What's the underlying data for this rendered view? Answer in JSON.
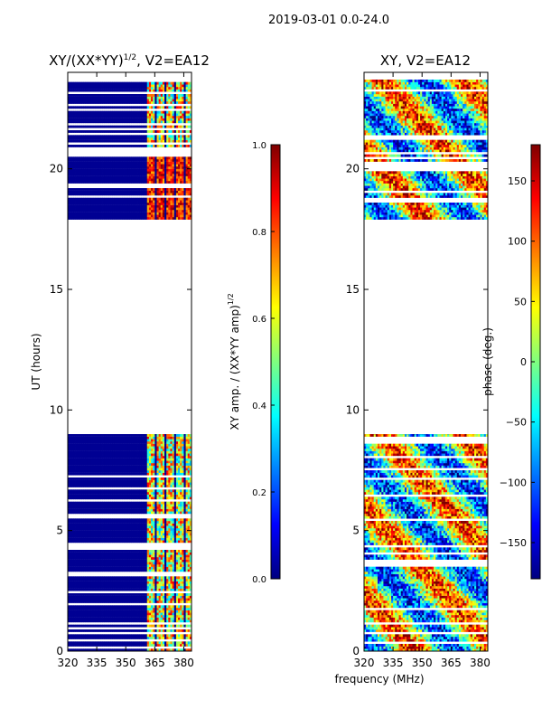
{
  "figure": {
    "suptitle": "2019-03-01 0.0-24.0",
    "shared_xlabel": "frequency (MHz)"
  },
  "colors": {
    "jet": [
      "#00007f",
      "#0000ff",
      "#007fff",
      "#00ffff",
      "#7fff7f",
      "#ffff00",
      "#ff7f00",
      "#ff0000",
      "#7f0000"
    ],
    "background": "#ffffff",
    "axis": "#000000"
  },
  "chart_data": [
    {
      "type": "heatmap",
      "title": "XY/(XX*YY)^1/2, V2=EA12",
      "title_parts": {
        "base": "XY/(XX*YY)",
        "sup": "1/2",
        "rest": ", V2=EA12"
      },
      "xlabel": "frequency (MHz)",
      "ylabel": "UT (hours)",
      "xlim": [
        320,
        384
      ],
      "ylim": [
        0,
        24
      ],
      "xticks": [
        "320",
        "335",
        "350",
        "365",
        "380"
      ],
      "yticks": [
        "0",
        "5",
        "10",
        "15",
        "20"
      ],
      "data_blocks": [
        {
          "ut_start": 0.0,
          "ut_end": 2.6,
          "description": "low amplitude below 360 MHz, mixed amplitudes 361-380 MHz"
        },
        {
          "ut_start": 2.6,
          "ut_end": 9.0,
          "description": "banded rows, moderate-high amplitude channels above 361 MHz"
        },
        {
          "ut_start": 17.9,
          "ut_end": 20.7,
          "description": "high amplitude channels above 361 MHz"
        },
        {
          "ut_start": 20.9,
          "ut_end": 23.8,
          "description": "low amplitude below 360 MHz, mixed amplitudes 361-380 MHz"
        }
      ],
      "colorbar": {
        "label_base": "XY amp. / (XX*YY amp)",
        "label_sup": "1/2",
        "vmin": 0.0,
        "vmax": 1.0,
        "ticks": [
          "0.0",
          "0.2",
          "0.4",
          "0.6",
          "0.8",
          "1.0"
        ]
      }
    },
    {
      "type": "heatmap",
      "title": "XY, V2=EA12",
      "xlabel": "frequency (MHz)",
      "ylabel": "",
      "xlim": [
        320,
        384
      ],
      "ylim": [
        0,
        24
      ],
      "xticks": [
        "320",
        "335",
        "350",
        "365",
        "380"
      ],
      "yticks": [
        "0",
        "5",
        "10",
        "15",
        "20"
      ],
      "data_blocks": [
        {
          "ut_start": 0.0,
          "ut_end": 9.0,
          "description": "noisy phase across full band"
        },
        {
          "ut_start": 17.9,
          "ut_end": 23.8,
          "description": "noisy phase with coherent structure"
        }
      ],
      "colorbar": {
        "label": "phase (deg.)",
        "vmin": -180,
        "vmax": 180,
        "ticks": [
          "150",
          "100",
          "50",
          "0",
          "−50",
          "−100",
          "−150"
        ],
        "tick_values": [
          150,
          100,
          50,
          0,
          -50,
          -100,
          -150
        ]
      }
    }
  ]
}
